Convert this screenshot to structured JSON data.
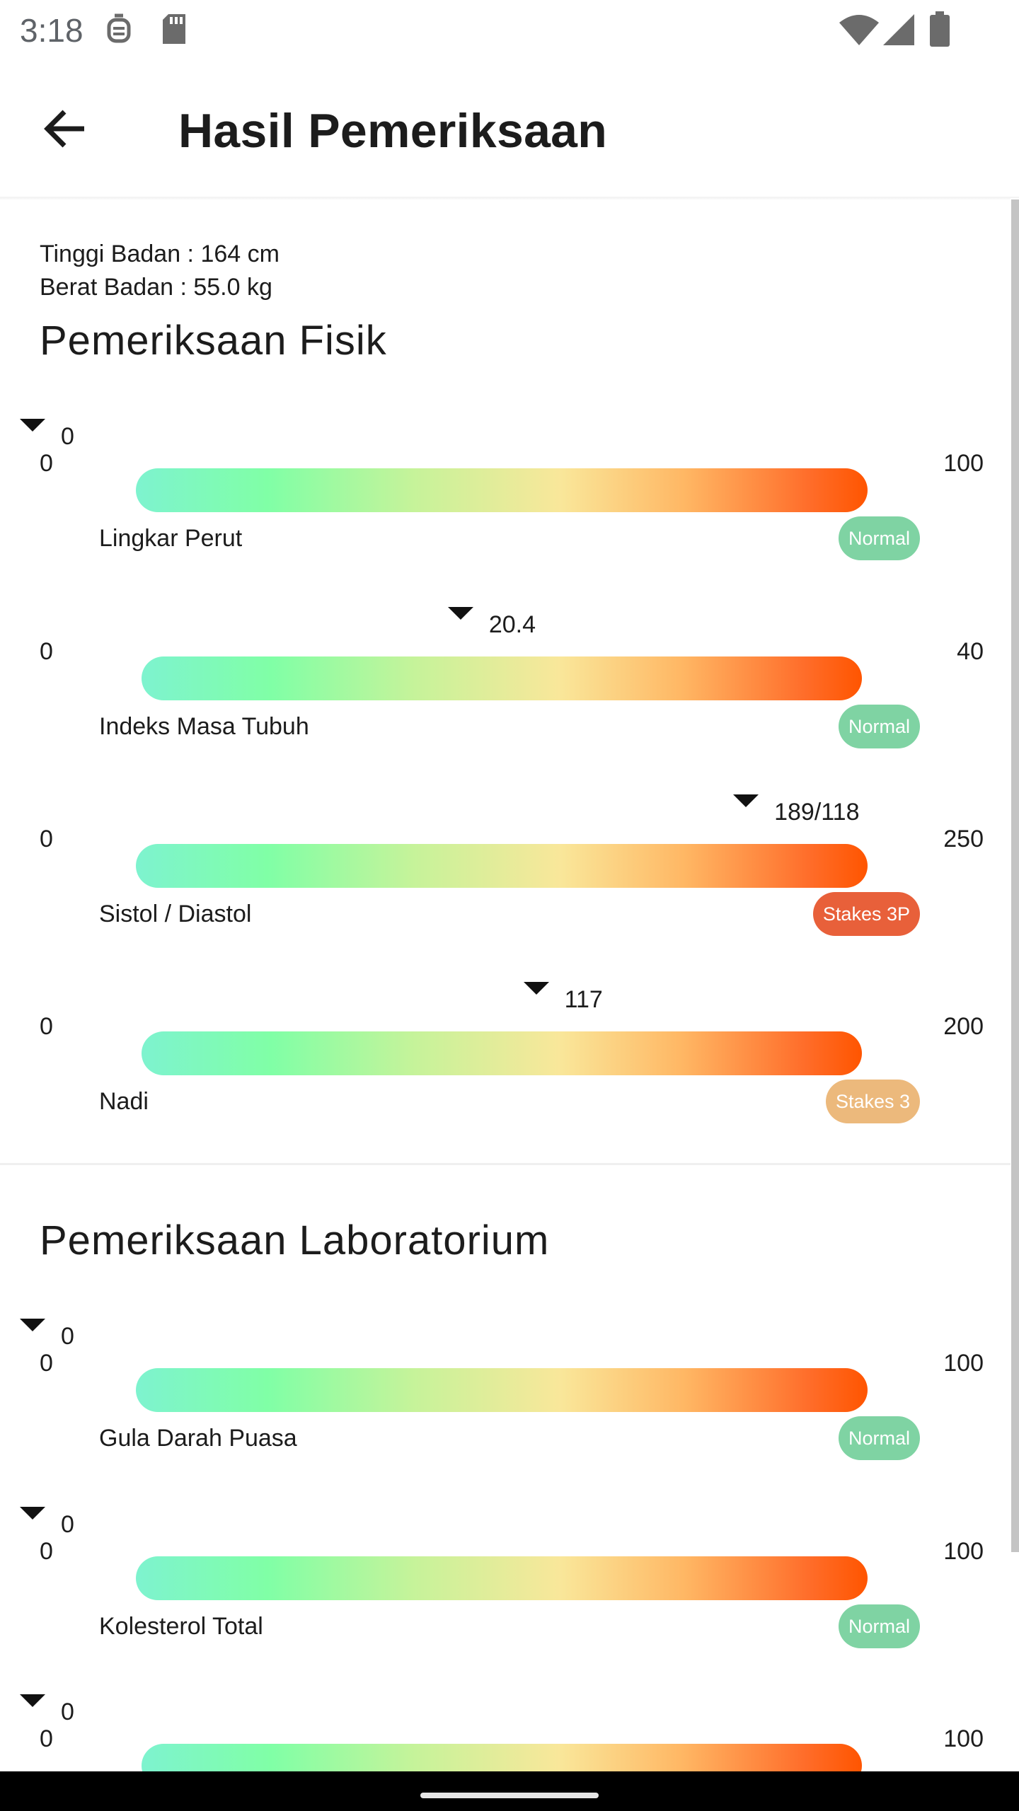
{
  "status_bar": {
    "time": "3:18",
    "icons": [
      "face-lock-icon",
      "sd-card-icon",
      "wifi-icon",
      "signal-icon",
      "battery-icon"
    ]
  },
  "app_bar": {
    "back_icon": "arrow-back-icon",
    "title": "Hasil Pemeriksaan"
  },
  "body_info": {
    "height": "Tinggi Badan : 164 cm",
    "weight": "Berat Badan : 55.0 kg"
  },
  "physical_section": {
    "title": "Pemeriksaan Fisik",
    "gauges": [
      {
        "label": "Lingkar Perut",
        "min": "0",
        "max": "100",
        "value": "0",
        "level": 0.0,
        "badge": "Normal",
        "badge_color": "#7fd3a3"
      },
      {
        "label": "Indeks Masa Tubuh",
        "min": "0",
        "max": "40",
        "value": "20.4",
        "level": 0.51,
        "badge": "Normal",
        "badge_color": "#7fd3a3"
      },
      {
        "label": "Sistol / Diastol",
        "min": "0",
        "max": "250",
        "value": "189/118",
        "level": 0.85,
        "badge": "Stakes 3P",
        "badge_color": "#e8603a"
      },
      {
        "label": "Nadi",
        "min": "0",
        "max": "200",
        "value": "117",
        "level": 0.6,
        "badge": "Stakes 3",
        "badge_color": "#ecb97c"
      }
    ]
  },
  "lab_section": {
    "title": "Pemeriksaan Laboratorium",
    "gauges": [
      {
        "label": "Gula Darah Puasa",
        "min": "0",
        "max": "100",
        "value": "0",
        "level": 0.0,
        "badge": "Normal",
        "badge_color": "#7fd3a3"
      },
      {
        "label": "Kolesterol Total",
        "min": "0",
        "max": "100",
        "value": "0",
        "level": 0.0,
        "badge": "Normal",
        "badge_color": "#7fd3a3"
      },
      {
        "label": "",
        "min": "0",
        "max": "100",
        "value": "0",
        "level": 0.0,
        "badge": "",
        "badge_color": "#7fd3a3"
      }
    ]
  }
}
